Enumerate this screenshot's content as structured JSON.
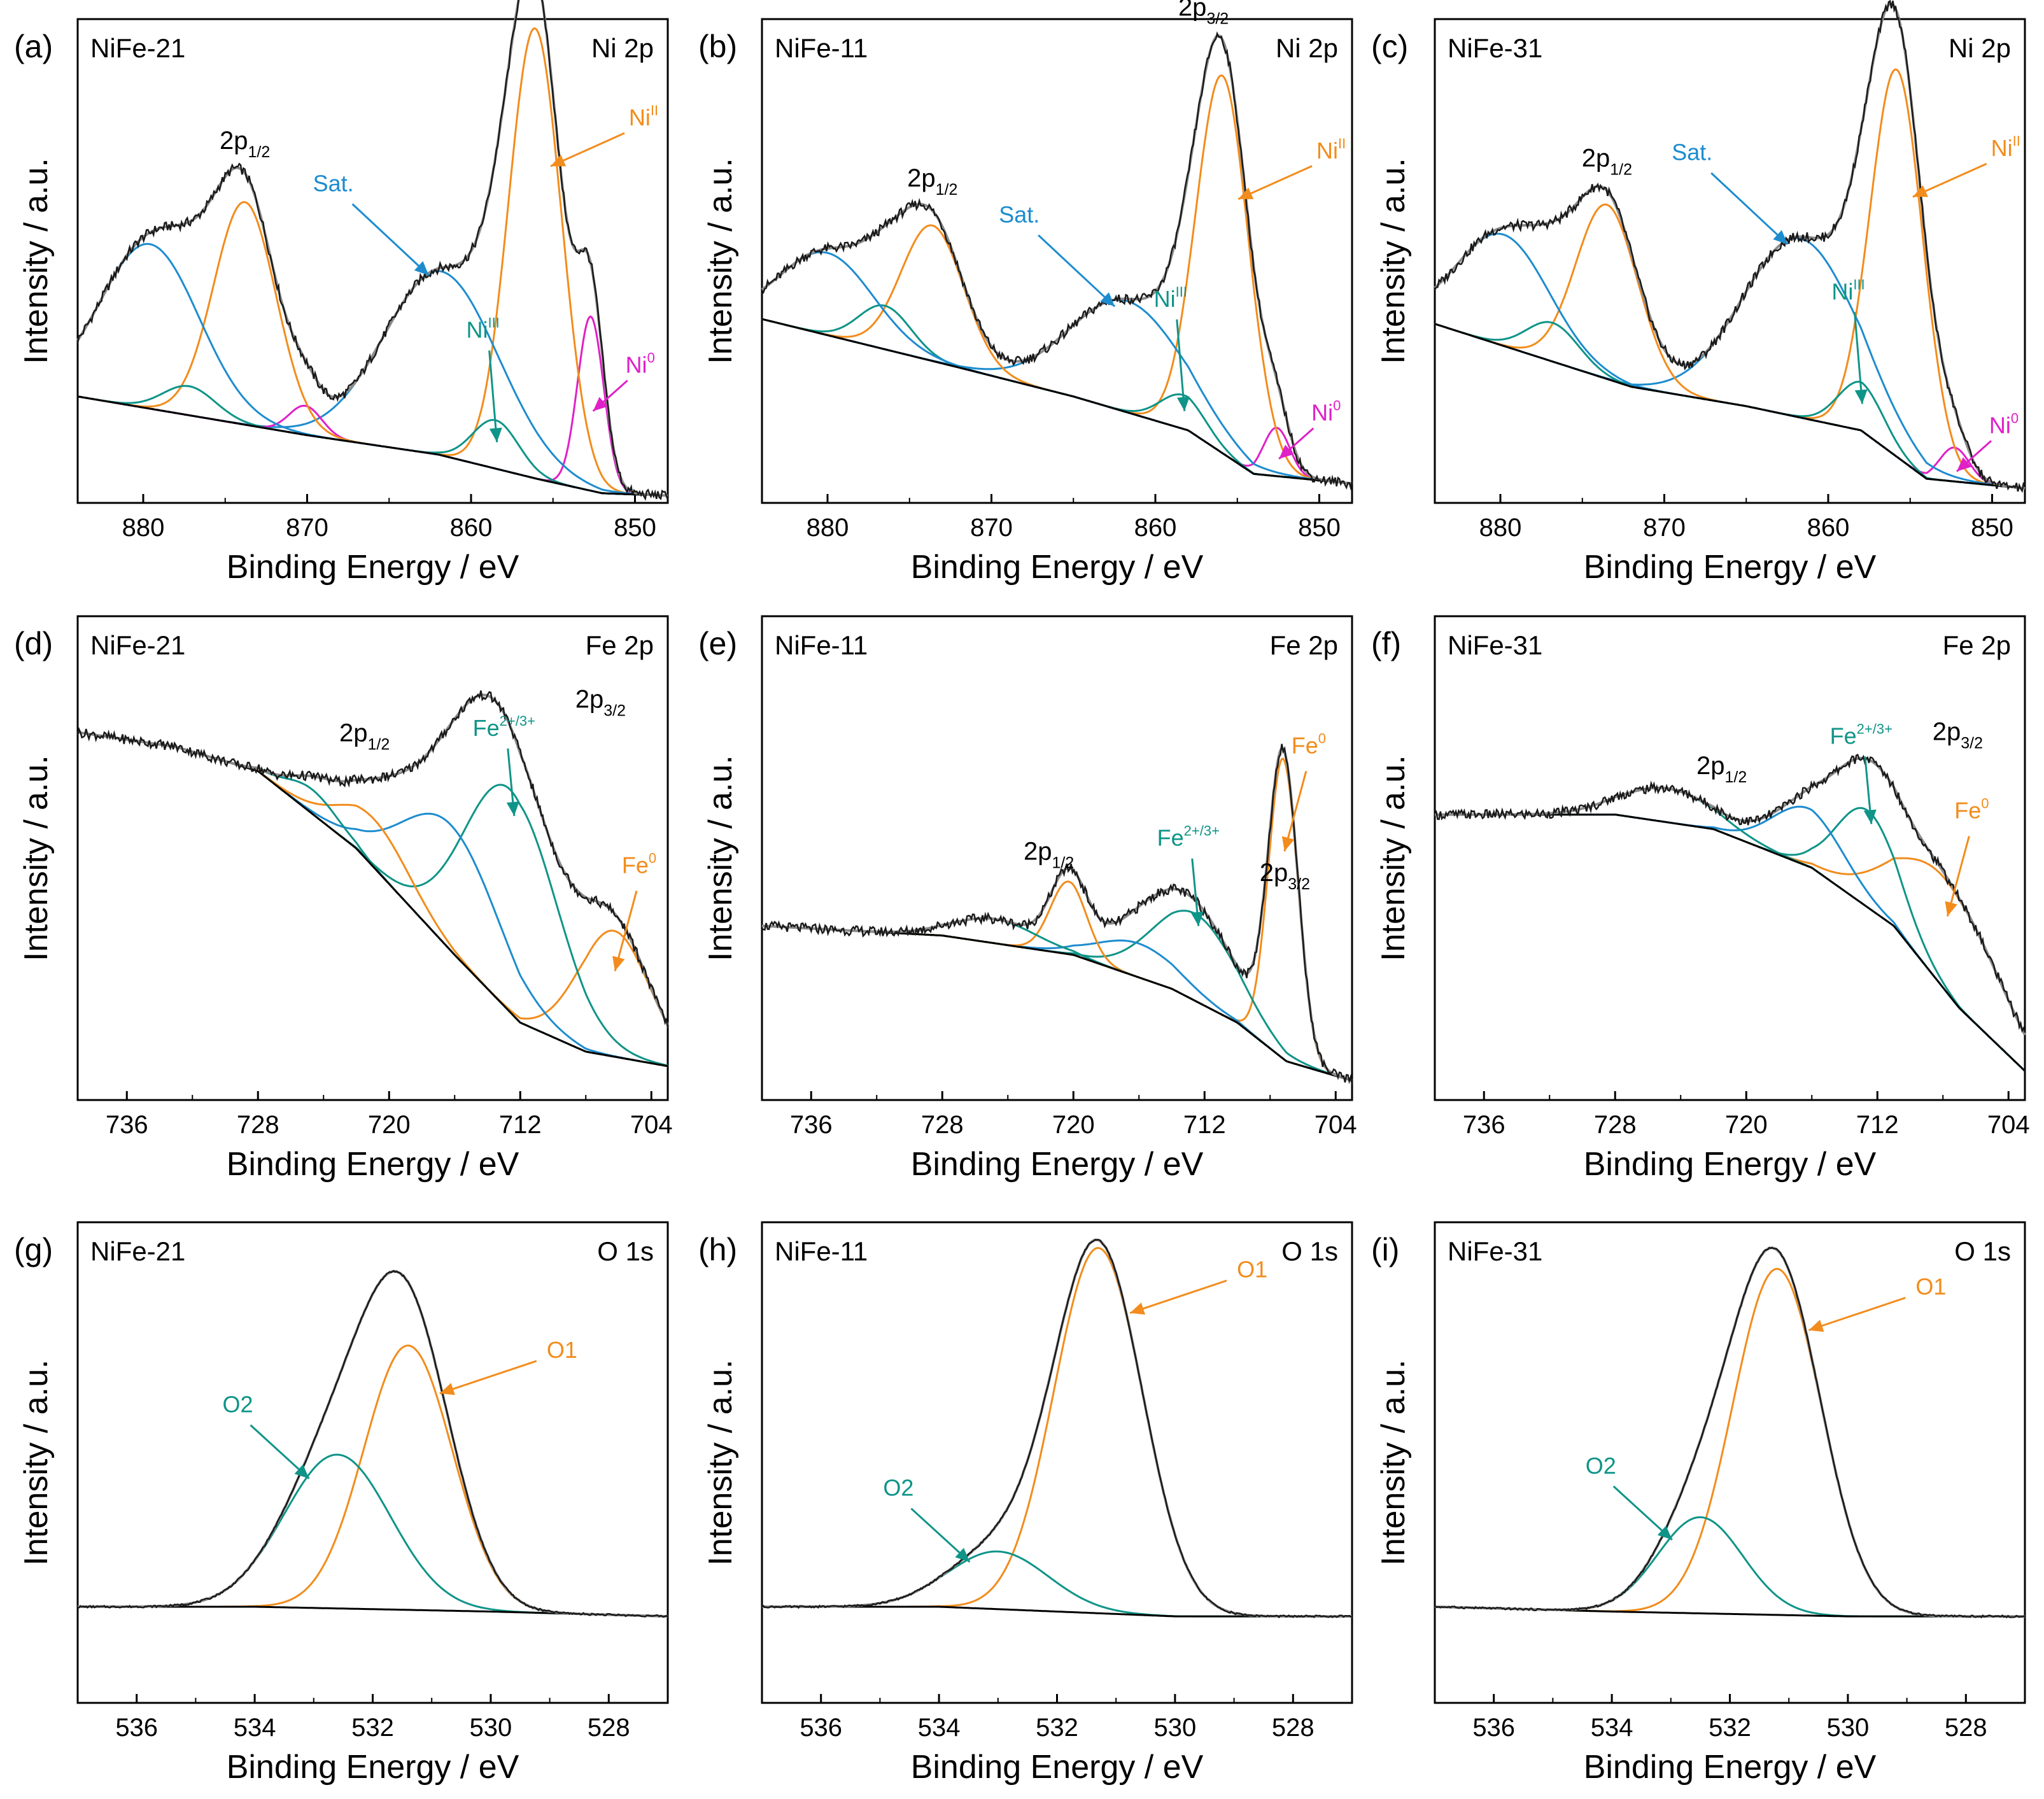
{
  "figure": {
    "y_label": "Intensity / a.u.",
    "x_label": "Binding Energy / eV",
    "colors": {
      "raw": "#1a1a1a",
      "envelope": "#8c8c8c",
      "background": "#000000",
      "orange": "#f28c1c",
      "blue": "#1d8ccf",
      "teal": "#0f9488",
      "magenta": "#e020c8"
    }
  },
  "chart_data": [
    {
      "type": "line",
      "panel": "(a)",
      "sample": "NiFe-21",
      "region": "Ni 2p",
      "xlim": [
        884,
        848
      ],
      "ylim": [
        0,
        1
      ],
      "xticks": [
        880,
        870,
        860,
        850
      ],
      "background": [
        [
          884,
          0.22
        ],
        [
          870,
          0.14
        ],
        [
          862,
          0.1
        ],
        [
          856,
          0.05
        ],
        [
          852,
          0.02
        ],
        [
          848,
          0.015
        ]
      ],
      "peaks": [
        {
          "name": "Ni0",
          "color": "magenta",
          "center": 852.7,
          "height": 0.36,
          "width": 0.8
        },
        {
          "name": "NiII 2p3/2",
          "color": "orange",
          "center": 856.1,
          "height": 0.93,
          "width": 1.6
        },
        {
          "name": "NiIII 2p3/2",
          "color": "teal",
          "center": 858.5,
          "height": 0.1,
          "width": 1.4
        },
        {
          "name": "Sat. 2p3/2",
          "color": "blue",
          "center": 861.8,
          "height": 0.38,
          "width": 3.5
        },
        {
          "name": "Ni0 2p1/2",
          "color": "magenta",
          "center": 870.1,
          "height": 0.06,
          "width": 1.0
        },
        {
          "name": "NiII 2p1/2",
          "color": "orange",
          "center": 873.8,
          "height": 0.46,
          "width": 1.9
        },
        {
          "name": "NiIII 2p1/2",
          "color": "teal",
          "center": 877.2,
          "height": 0.06,
          "width": 1.6
        },
        {
          "name": "Sat. 2p1/2",
          "color": "blue",
          "center": 879.6,
          "height": 0.34,
          "width": 3.0
        }
      ],
      "labels": {
        "p32": "2p",
        "p32_sub": "3/2",
        "p12": "2p",
        "p12_sub": "1/2",
        "sat": "Sat.",
        "ni3": "Ni",
        "ni3_sup": "III",
        "ni2": "Ni",
        "ni2_sup": "II",
        "ni0": "Ni",
        "ni0_sup": "0"
      }
    },
    {
      "type": "line",
      "panel": "(b)",
      "sample": "NiFe-11",
      "region": "Ni 2p",
      "xlim": [
        884,
        848
      ],
      "ylim": [
        0,
        1
      ],
      "xticks": [
        880,
        870,
        860,
        850
      ],
      "background": [
        [
          884,
          0.38
        ],
        [
          872,
          0.28
        ],
        [
          865,
          0.22
        ],
        [
          858,
          0.15
        ],
        [
          854,
          0.06
        ],
        [
          848,
          0.04
        ]
      ],
      "peaks": [
        {
          "name": "Ni0",
          "color": "magenta",
          "center": 852.6,
          "height": 0.1,
          "width": 0.8
        },
        {
          "name": "NiII 2p3/2",
          "color": "orange",
          "center": 855.9,
          "height": 0.78,
          "width": 1.6
        },
        {
          "name": "NiIII 2p3/2",
          "color": "teal",
          "center": 858.3,
          "height": 0.07,
          "width": 1.4
        },
        {
          "name": "Sat. 2p3/2",
          "color": "blue",
          "center": 861.7,
          "height": 0.23,
          "width": 3.5
        },
        {
          "name": "NiII 2p1/2",
          "color": "orange",
          "center": 873.6,
          "height": 0.28,
          "width": 1.9
        },
        {
          "name": "NiIII 2p1/2",
          "color": "teal",
          "center": 876.5,
          "height": 0.09,
          "width": 1.6
        },
        {
          "name": "Sat. 2p1/2",
          "color": "blue",
          "center": 880.0,
          "height": 0.17,
          "width": 2.8
        }
      ],
      "labels": {
        "p32": "2p",
        "p32_sub": "3/2",
        "p12": "2p",
        "p12_sub": "1/2",
        "sat": "Sat.",
        "ni3": "Ni",
        "ni3_sup": "III",
        "ni2": "Ni",
        "ni2_sup": "II",
        "ni0": "Ni",
        "ni0_sup": "0"
      }
    },
    {
      "type": "line",
      "panel": "(c)",
      "sample": "NiFe-31",
      "region": "Ni 2p",
      "xlim": [
        884,
        848
      ],
      "ylim": [
        0,
        1
      ],
      "xticks": [
        880,
        870,
        860,
        850
      ],
      "background": [
        [
          884,
          0.37
        ],
        [
          872,
          0.24
        ],
        [
          865,
          0.2
        ],
        [
          858,
          0.15
        ],
        [
          854,
          0.05
        ],
        [
          848,
          0.03
        ]
      ],
      "peaks": [
        {
          "name": "Ni0",
          "color": "magenta",
          "center": 852.3,
          "height": 0.07,
          "width": 0.9
        },
        {
          "name": "NiII 2p3/2",
          "color": "orange",
          "center": 855.8,
          "height": 0.8,
          "width": 1.6
        },
        {
          "name": "NiIII 2p3/2",
          "color": "teal",
          "center": 858.0,
          "height": 0.1,
          "width": 1.4
        },
        {
          "name": "Sat. 2p3/2",
          "color": "blue",
          "center": 861.7,
          "height": 0.37,
          "width": 3.5
        },
        {
          "name": "NiII 2p1/2",
          "color": "orange",
          "center": 873.5,
          "height": 0.36,
          "width": 1.9
        },
        {
          "name": "NiIII 2p1/2",
          "color": "teal",
          "center": 876.8,
          "height": 0.08,
          "width": 1.6
        },
        {
          "name": "Sat. 2p1/2",
          "color": "blue",
          "center": 879.8,
          "height": 0.23,
          "width": 2.8
        }
      ],
      "labels": {
        "p32": "2p",
        "p32_sub": "3/2",
        "p12": "2p",
        "p12_sub": "1/2",
        "sat": "Sat.",
        "ni3": "Ni",
        "ni3_sup": "III",
        "ni2": "Ni",
        "ni2_sup": "II",
        "ni0": "Ni",
        "ni0_sup": "0"
      }
    },
    {
      "type": "line",
      "panel": "(d)",
      "sample": "NiFe-21",
      "region": "Fe 2p",
      "xlim": [
        739,
        703
      ],
      "ylim": [
        0,
        1
      ],
      "xticks": [
        736,
        728,
        720,
        712,
        704
      ],
      "background": [
        [
          739,
          0.76
        ],
        [
          733,
          0.73
        ],
        [
          728,
          0.68
        ],
        [
          722,
          0.52
        ],
        [
          716,
          0.3
        ],
        [
          712,
          0.16
        ],
        [
          708,
          0.1
        ],
        [
          703,
          0.07
        ]
      ],
      "peaks": [
        {
          "name": "Fe0 2p3/2",
          "color": "orange",
          "center": 706.3,
          "height": 0.26,
          "width": 2.2
        },
        {
          "name": "Fe2+/3+ 2p3/2",
          "color": "teal",
          "center": 712.6,
          "height": 0.46,
          "width": 2.8
        },
        {
          "name": "Fe sat 2p3/2",
          "color": "blue",
          "center": 716.2,
          "height": 0.26,
          "width": 3.0
        },
        {
          "name": "Fe0 2p1/2",
          "color": "orange",
          "center": 720.9,
          "height": 0.1,
          "width": 2.2
        },
        {
          "name": "Fe2+/3+ 2p1/2",
          "color": "teal",
          "center": 724.7,
          "height": 0.05,
          "width": 1.6
        }
      ],
      "labels": {
        "p32": "2p",
        "p32_sub": "3/2",
        "p12": "2p",
        "p12_sub": "1/2",
        "fe23": "Fe",
        "fe23_sup": "2+/3+",
        "fe0": "Fe",
        "fe0_sup": "0"
      }
    },
    {
      "type": "line",
      "panel": "(e)",
      "sample": "NiFe-11",
      "region": "Fe 2p",
      "xlim": [
        739,
        703
      ],
      "ylim": [
        0,
        1
      ],
      "xticks": [
        736,
        728,
        720,
        712,
        704
      ],
      "background": [
        [
          739,
          0.36
        ],
        [
          728,
          0.34
        ],
        [
          720,
          0.3
        ],
        [
          714,
          0.23
        ],
        [
          710,
          0.16
        ],
        [
          707,
          0.08
        ],
        [
          703,
          0.04
        ]
      ],
      "peaks": [
        {
          "name": "Fe0 2p3/2",
          "color": "orange",
          "center": 707.2,
          "height": 0.62,
          "width": 0.9
        },
        {
          "name": "Fe2+/3+ 2p3/2",
          "color": "teal",
          "center": 712.6,
          "height": 0.18,
          "width": 2.6
        },
        {
          "name": "Fe sat 2p3/2",
          "color": "blue",
          "center": 716.0,
          "height": 0.07,
          "width": 2.5
        },
        {
          "name": "Fe0 2p1/2",
          "color": "orange",
          "center": 720.3,
          "height": 0.15,
          "width": 1.1
        },
        {
          "name": "Fe2+/3+ 2p1/2",
          "color": "teal",
          "center": 724.8,
          "height": 0.05,
          "width": 2.5
        }
      ],
      "labels": {
        "p32": "2p",
        "p32_sub": "3/2",
        "p12": "2p",
        "p12_sub": "1/2",
        "fe23": "Fe",
        "fe23_sup": "2+/3+",
        "fe0": "Fe",
        "fe0_sup": "0"
      }
    },
    {
      "type": "line",
      "panel": "(f)",
      "sample": "NiFe-31",
      "region": "Fe 2p",
      "xlim": [
        739,
        703
      ],
      "ylim": [
        0,
        1
      ],
      "xticks": [
        736,
        728,
        720,
        712,
        704
      ],
      "background": [
        [
          739,
          0.59
        ],
        [
          728,
          0.59
        ],
        [
          722,
          0.56
        ],
        [
          716,
          0.48
        ],
        [
          711,
          0.36
        ],
        [
          707,
          0.19
        ],
        [
          703,
          0.06
        ]
      ],
      "peaks": [
        {
          "name": "Fe0 2p3/2",
          "color": "orange",
          "center": 707.8,
          "height": 0.23,
          "width": 3.2
        },
        {
          "name": "Fe2+/3+ 2p3/2",
          "color": "teal",
          "center": 712.6,
          "height": 0.2,
          "width": 1.9
        },
        {
          "name": "Fe sat 2p3/2",
          "color": "blue",
          "center": 716.2,
          "height": 0.12,
          "width": 2.2
        },
        {
          "name": "Fe2+/3+ 2p1/2",
          "color": "teal",
          "center": 724.8,
          "height": 0.07,
          "width": 2.8
        }
      ],
      "labels": {
        "p32": "2p",
        "p32_sub": "3/2",
        "p12": "2p",
        "p12_sub": "1/2",
        "fe23": "Fe",
        "fe23_sup": "2+/3+",
        "fe0": "Fe",
        "fe0_sup": "0"
      }
    },
    {
      "type": "line",
      "panel": "(g)",
      "sample": "NiFe-21",
      "region": "O 1s",
      "xlim": [
        537,
        527
      ],
      "ylim": [
        0,
        1
      ],
      "xticks": [
        536,
        534,
        532,
        530,
        528
      ],
      "background": [
        [
          537,
          0.2
        ],
        [
          534,
          0.2
        ],
        [
          530,
          0.19
        ],
        [
          527,
          0.18
        ]
      ],
      "peaks": [
        {
          "name": "O1",
          "color": "orange",
          "center": 531.4,
          "height": 0.55,
          "width": 0.75
        },
        {
          "name": "O2",
          "color": "teal",
          "center": 532.6,
          "height": 0.32,
          "width": 0.9
        }
      ],
      "labels": {
        "o1": "O1",
        "o2": "O2"
      }
    },
    {
      "type": "line",
      "panel": "(h)",
      "sample": "NiFe-11",
      "region": "O 1s",
      "xlim": [
        537,
        527
      ],
      "ylim": [
        0,
        1
      ],
      "xticks": [
        536,
        534,
        532,
        530,
        528
      ],
      "background": [
        [
          537,
          0.2
        ],
        [
          534,
          0.2
        ],
        [
          530,
          0.18
        ],
        [
          527,
          0.18
        ]
      ],
      "peaks": [
        {
          "name": "O1",
          "color": "orange",
          "center": 531.3,
          "height": 0.76,
          "width": 0.75
        },
        {
          "name": "O2",
          "color": "teal",
          "center": 533.0,
          "height": 0.12,
          "width": 0.85
        }
      ],
      "labels": {
        "o1": "O1",
        "o2": "O2"
      }
    },
    {
      "type": "line",
      "panel": "(i)",
      "sample": "NiFe-31",
      "region": "O 1s",
      "xlim": [
        537,
        527
      ],
      "ylim": [
        0,
        1
      ],
      "xticks": [
        536,
        534,
        532,
        530,
        528
      ],
      "background": [
        [
          537,
          0.2
        ],
        [
          534,
          0.19
        ],
        [
          530,
          0.18
        ],
        [
          527,
          0.18
        ]
      ],
      "peaks": [
        {
          "name": "O1",
          "color": "orange",
          "center": 531.2,
          "height": 0.72,
          "width": 0.75
        },
        {
          "name": "O2",
          "color": "teal",
          "center": 532.5,
          "height": 0.2,
          "width": 0.72
        }
      ],
      "labels": {
        "o1": "O1",
        "o2": "O2"
      }
    }
  ]
}
